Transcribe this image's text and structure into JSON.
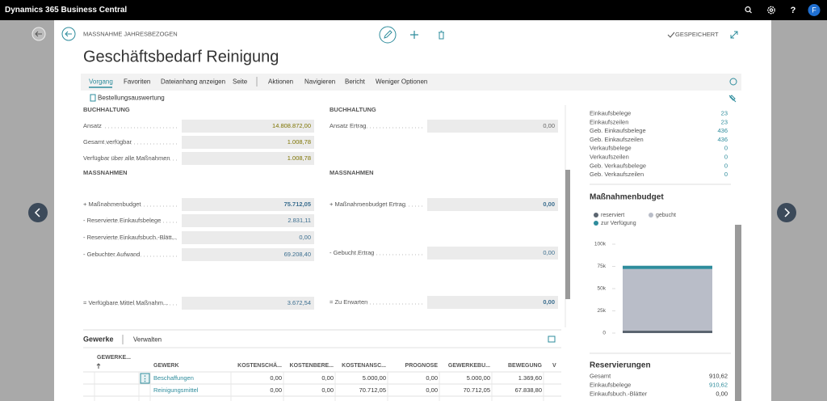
{
  "app": {
    "title": "Dynamics 365 Business Central",
    "user": "F"
  },
  "header": {
    "breadcrumb": "MASSNAHME JAHRESBEZOGEN",
    "title": "Geschäftsbedarf Reinigung",
    "status": "GESPEICHERT"
  },
  "menu": {
    "tabs": [
      "Vorgang",
      "Favoriten",
      "Dateianhang anzeigen",
      "Seite",
      "Aktionen",
      "Navigieren",
      "Bericht",
      "Weniger Optionen"
    ],
    "action": "Bestellungsauswertung"
  },
  "fields": {
    "left": [
      {
        "section": "BUCHHALTUNG",
        "rows": [
          {
            "label": "Ansatz",
            "value": "14.808.872,00"
          },
          {
            "label": "Gesamt verfügbar",
            "value": "1.008,78"
          },
          {
            "label": "Verfügbar über alle Maßnahmen",
            "value": "1.008,78"
          }
        ]
      },
      {
        "section": "MASSNAHMEN",
        "rows": [
          {
            "label": "+ Maßnahmenbudget",
            "value": "75.712,05"
          },
          {
            "label": "- Reservierte Einkaufsbelege",
            "value": "2.831,11"
          },
          {
            "label": "- Reservierte Einkaufsbuch.-Blätt...",
            "value": "0,00"
          },
          {
            "label": "- Gebuchter Aufwand",
            "value": "69.208,40"
          },
          {
            "label": "= Verfügbare Mittel Maßnahm...",
            "value": "3.672,54"
          }
        ]
      }
    ],
    "right": [
      {
        "section": "BUCHHALTUNG",
        "rows": [
          {
            "label": "Ansatz Ertrag",
            "value": "0,00"
          }
        ]
      },
      {
        "section": "MASSNAHMEN",
        "rows": [
          {
            "label": "+ Maßnahmenbudget Ertrag",
            "value": "0,00"
          },
          {
            "label": "- Gebucht Ertrag",
            "value": "0,00"
          },
          {
            "label": "= Zu Erwarten",
            "value": "0,00"
          }
        ]
      }
    ]
  },
  "gewerke": {
    "title": "Gewerke",
    "action": "Verwalten",
    "columns": [
      "GEWERKE...",
      "GEWERK",
      "KOSTENSCHÄ...",
      "KOSTENBERE...",
      "KOSTENANSC...",
      "PROGNOSE",
      "GEWERKEBU...",
      "BEWEGUNG",
      "V"
    ],
    "rows": [
      [
        "Beschaffungen",
        "0,00",
        "0,00",
        "5.000,00",
        "0,00",
        "5.000,00",
        "1.369,60"
      ],
      [
        "Reinigungsmittel",
        "0,00",
        "0,00",
        "70.712,05",
        "0,00",
        "70.712,05",
        "67.838,80"
      ]
    ]
  },
  "factbox": {
    "counts": [
      {
        "label": "Einkaufsbelege",
        "value": "23"
      },
      {
        "label": "Einkaufszeilen",
        "value": "23"
      },
      {
        "label": "Geb. Einkaufsbelege",
        "value": "436"
      },
      {
        "label": "Geb. Einkaufszeilen",
        "value": "436"
      },
      {
        "label": "Verkaufsbelege",
        "value": "0"
      },
      {
        "label": "Verkaufszeilen",
        "value": "0"
      },
      {
        "label": "Geb. Verkaufsbelege",
        "value": "0"
      },
      {
        "label": "Geb. Verkaufszeilen",
        "value": "0"
      }
    ],
    "budget": {
      "type": "bar",
      "title": "Maßnahmenbudget",
      "stacked": true,
      "ylim": [
        0,
        100000
      ],
      "yticks": [
        0,
        {
          "value": 25000,
          "label": "25k"
        },
        {
          "value": 50000,
          "label": "50k"
        },
        {
          "value": 75000,
          "label": "75k"
        },
        {
          "value": 100000,
          "label": "100k"
        }
      ],
      "series": [
        {
          "name": "reserviert",
          "color": "#5b6570",
          "value": 2831.11
        },
        {
          "name": "gebucht",
          "color": "#b9bdc8",
          "value": 69208.4
        },
        {
          "name": "zur Verfügung",
          "color": "#2e8c9c",
          "value": 3672.54
        }
      ]
    },
    "reservierungen": {
      "title": "Reservierungen",
      "rows": [
        {
          "label": "Gesamt",
          "value": "910,62"
        },
        {
          "label": "Einkaufsbelege",
          "value": "910,62"
        },
        {
          "label": "Einkaufsbuch.-Blätter",
          "value": "0,00"
        }
      ]
    }
  }
}
